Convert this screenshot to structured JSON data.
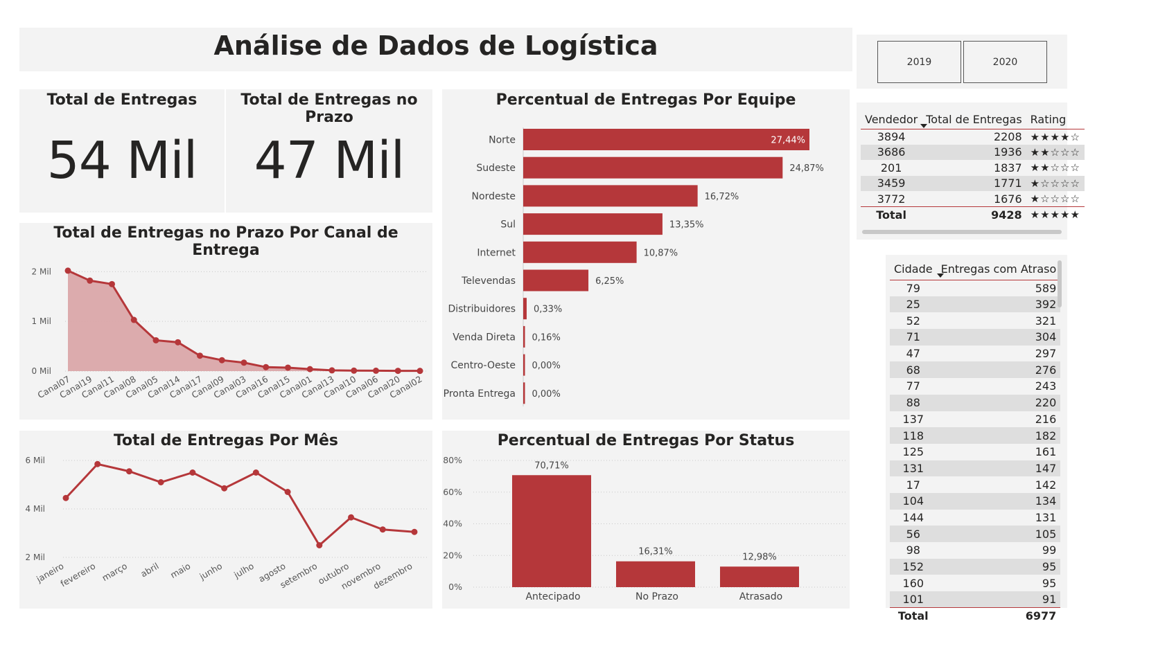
{
  "header": {
    "title": "Análise de Dados de Logística"
  },
  "year_slicer": {
    "options": [
      "2019",
      "2020"
    ]
  },
  "kpis": [
    {
      "title": "Total de Entregas",
      "value": "54 Mil"
    },
    {
      "title": "Total de Entregas no Prazo",
      "value": "47 Mil"
    }
  ],
  "chart_canal": {
    "title": "Total de Entregas no Prazo Por Canal de Entrega",
    "type": "area",
    "categories": [
      "Canal07",
      "Canal19",
      "Canal11",
      "Canal08",
      "Canal05",
      "Canal14",
      "Canal17",
      "Canal09",
      "Canal03",
      "Canal16",
      "Canal15",
      "Canal01",
      "Canal13",
      "Canal10",
      "Canal06",
      "Canal20",
      "Canal02"
    ],
    "values": [
      2020,
      1820,
      1750,
      1030,
      620,
      580,
      310,
      220,
      170,
      80,
      70,
      40,
      15,
      10,
      8,
      6,
      5
    ],
    "yticks": [
      {
        "v": 0,
        "label": "0 Mil"
      },
      {
        "v": 1000,
        "label": "1 Mil"
      },
      {
        "v": 2000,
        "label": "2 Mil"
      }
    ],
    "ylim": [
      0,
      2200
    ],
    "colors": {
      "line": "#b5373a",
      "fill": "#d9a3a5"
    }
  },
  "chart_mes": {
    "title": "Total de Entregas Por Mês",
    "type": "line",
    "categories": [
      "janeiro",
      "fevereiro",
      "março",
      "abril",
      "maio",
      "junho",
      "julho",
      "agosto",
      "setembro",
      "outubro",
      "novembro",
      "dezembro"
    ],
    "values": [
      4450,
      5850,
      5550,
      5100,
      5500,
      4850,
      5500,
      4700,
      2500,
      3650,
      3150,
      3050
    ],
    "yticks": [
      {
        "v": 2000,
        "label": "2 Mil"
      },
      {
        "v": 4000,
        "label": "4 Mil"
      },
      {
        "v": 6000,
        "label": "6 Mil"
      }
    ],
    "ylim": [
      2000,
      6000
    ],
    "colors": {
      "line": "#b5373a"
    }
  },
  "chart_equipe": {
    "title": "Percentual de Entregas Por Equipe",
    "type": "bar",
    "categories": [
      "Norte",
      "Sudeste",
      "Nordeste",
      "Sul",
      "Internet",
      "Televendas",
      "Distribuidores",
      "Venda Direta",
      "Centro-Oeste",
      "Pronta Entrega"
    ],
    "values": [
      27.44,
      24.87,
      16.72,
      13.35,
      10.87,
      6.25,
      0.33,
      0.16,
      0.0,
      0.0
    ],
    "labels": [
      "27,44%",
      "24,87%",
      "16,72%",
      "13,35%",
      "10,87%",
      "6,25%",
      "0,33%",
      "0,16%",
      "0,00%",
      "0,00%"
    ],
    "colors": {
      "bar": "#b5373a"
    }
  },
  "chart_status": {
    "title": "Percentual de Entregas Por Status",
    "type": "bar",
    "categories": [
      "Antecipado",
      "No Prazo",
      "Atrasado"
    ],
    "values": [
      70.71,
      16.31,
      12.98
    ],
    "labels": [
      "70,71%",
      "16,31%",
      "12,98%"
    ],
    "yticks": [
      {
        "v": 0,
        "label": "0%"
      },
      {
        "v": 20,
        "label": "20%"
      },
      {
        "v": 40,
        "label": "40%"
      },
      {
        "v": 60,
        "label": "60%"
      },
      {
        "v": 80,
        "label": "80%"
      }
    ],
    "ylim": [
      0,
      80
    ],
    "colors": {
      "bar": "#b5373a"
    }
  },
  "vendedor_table": {
    "columns": [
      "Vendedor",
      "Total de Entregas",
      "Rating"
    ],
    "rows": [
      {
        "vendedor": "3894",
        "total": "2208",
        "rating": "★★★★☆"
      },
      {
        "vendedor": "3686",
        "total": "1936",
        "rating": "★★☆☆☆"
      },
      {
        "vendedor": "201",
        "total": "1837",
        "rating": "★★☆☆☆"
      },
      {
        "vendedor": "3459",
        "total": "1771",
        "rating": "★☆☆☆☆"
      },
      {
        "vendedor": "3772",
        "total": "1676",
        "rating": "★☆☆☆☆"
      }
    ],
    "total": {
      "label": "Total",
      "total": "9428",
      "rating": "★★★★★"
    }
  },
  "cidade_table": {
    "columns": [
      "Cidade",
      "Entregas com Atraso"
    ],
    "rows": [
      [
        "79",
        "589"
      ],
      [
        "25",
        "392"
      ],
      [
        "52",
        "321"
      ],
      [
        "71",
        "304"
      ],
      [
        "47",
        "297"
      ],
      [
        "68",
        "276"
      ],
      [
        "77",
        "243"
      ],
      [
        "88",
        "220"
      ],
      [
        "137",
        "216"
      ],
      [
        "118",
        "182"
      ],
      [
        "125",
        "161"
      ],
      [
        "131",
        "147"
      ],
      [
        "17",
        "142"
      ],
      [
        "104",
        "134"
      ],
      [
        "144",
        "131"
      ],
      [
        "56",
        "105"
      ],
      [
        "98",
        "99"
      ],
      [
        "152",
        "95"
      ],
      [
        "160",
        "95"
      ],
      [
        "101",
        "91"
      ]
    ],
    "total": {
      "label": "Total",
      "value": "6977"
    }
  }
}
